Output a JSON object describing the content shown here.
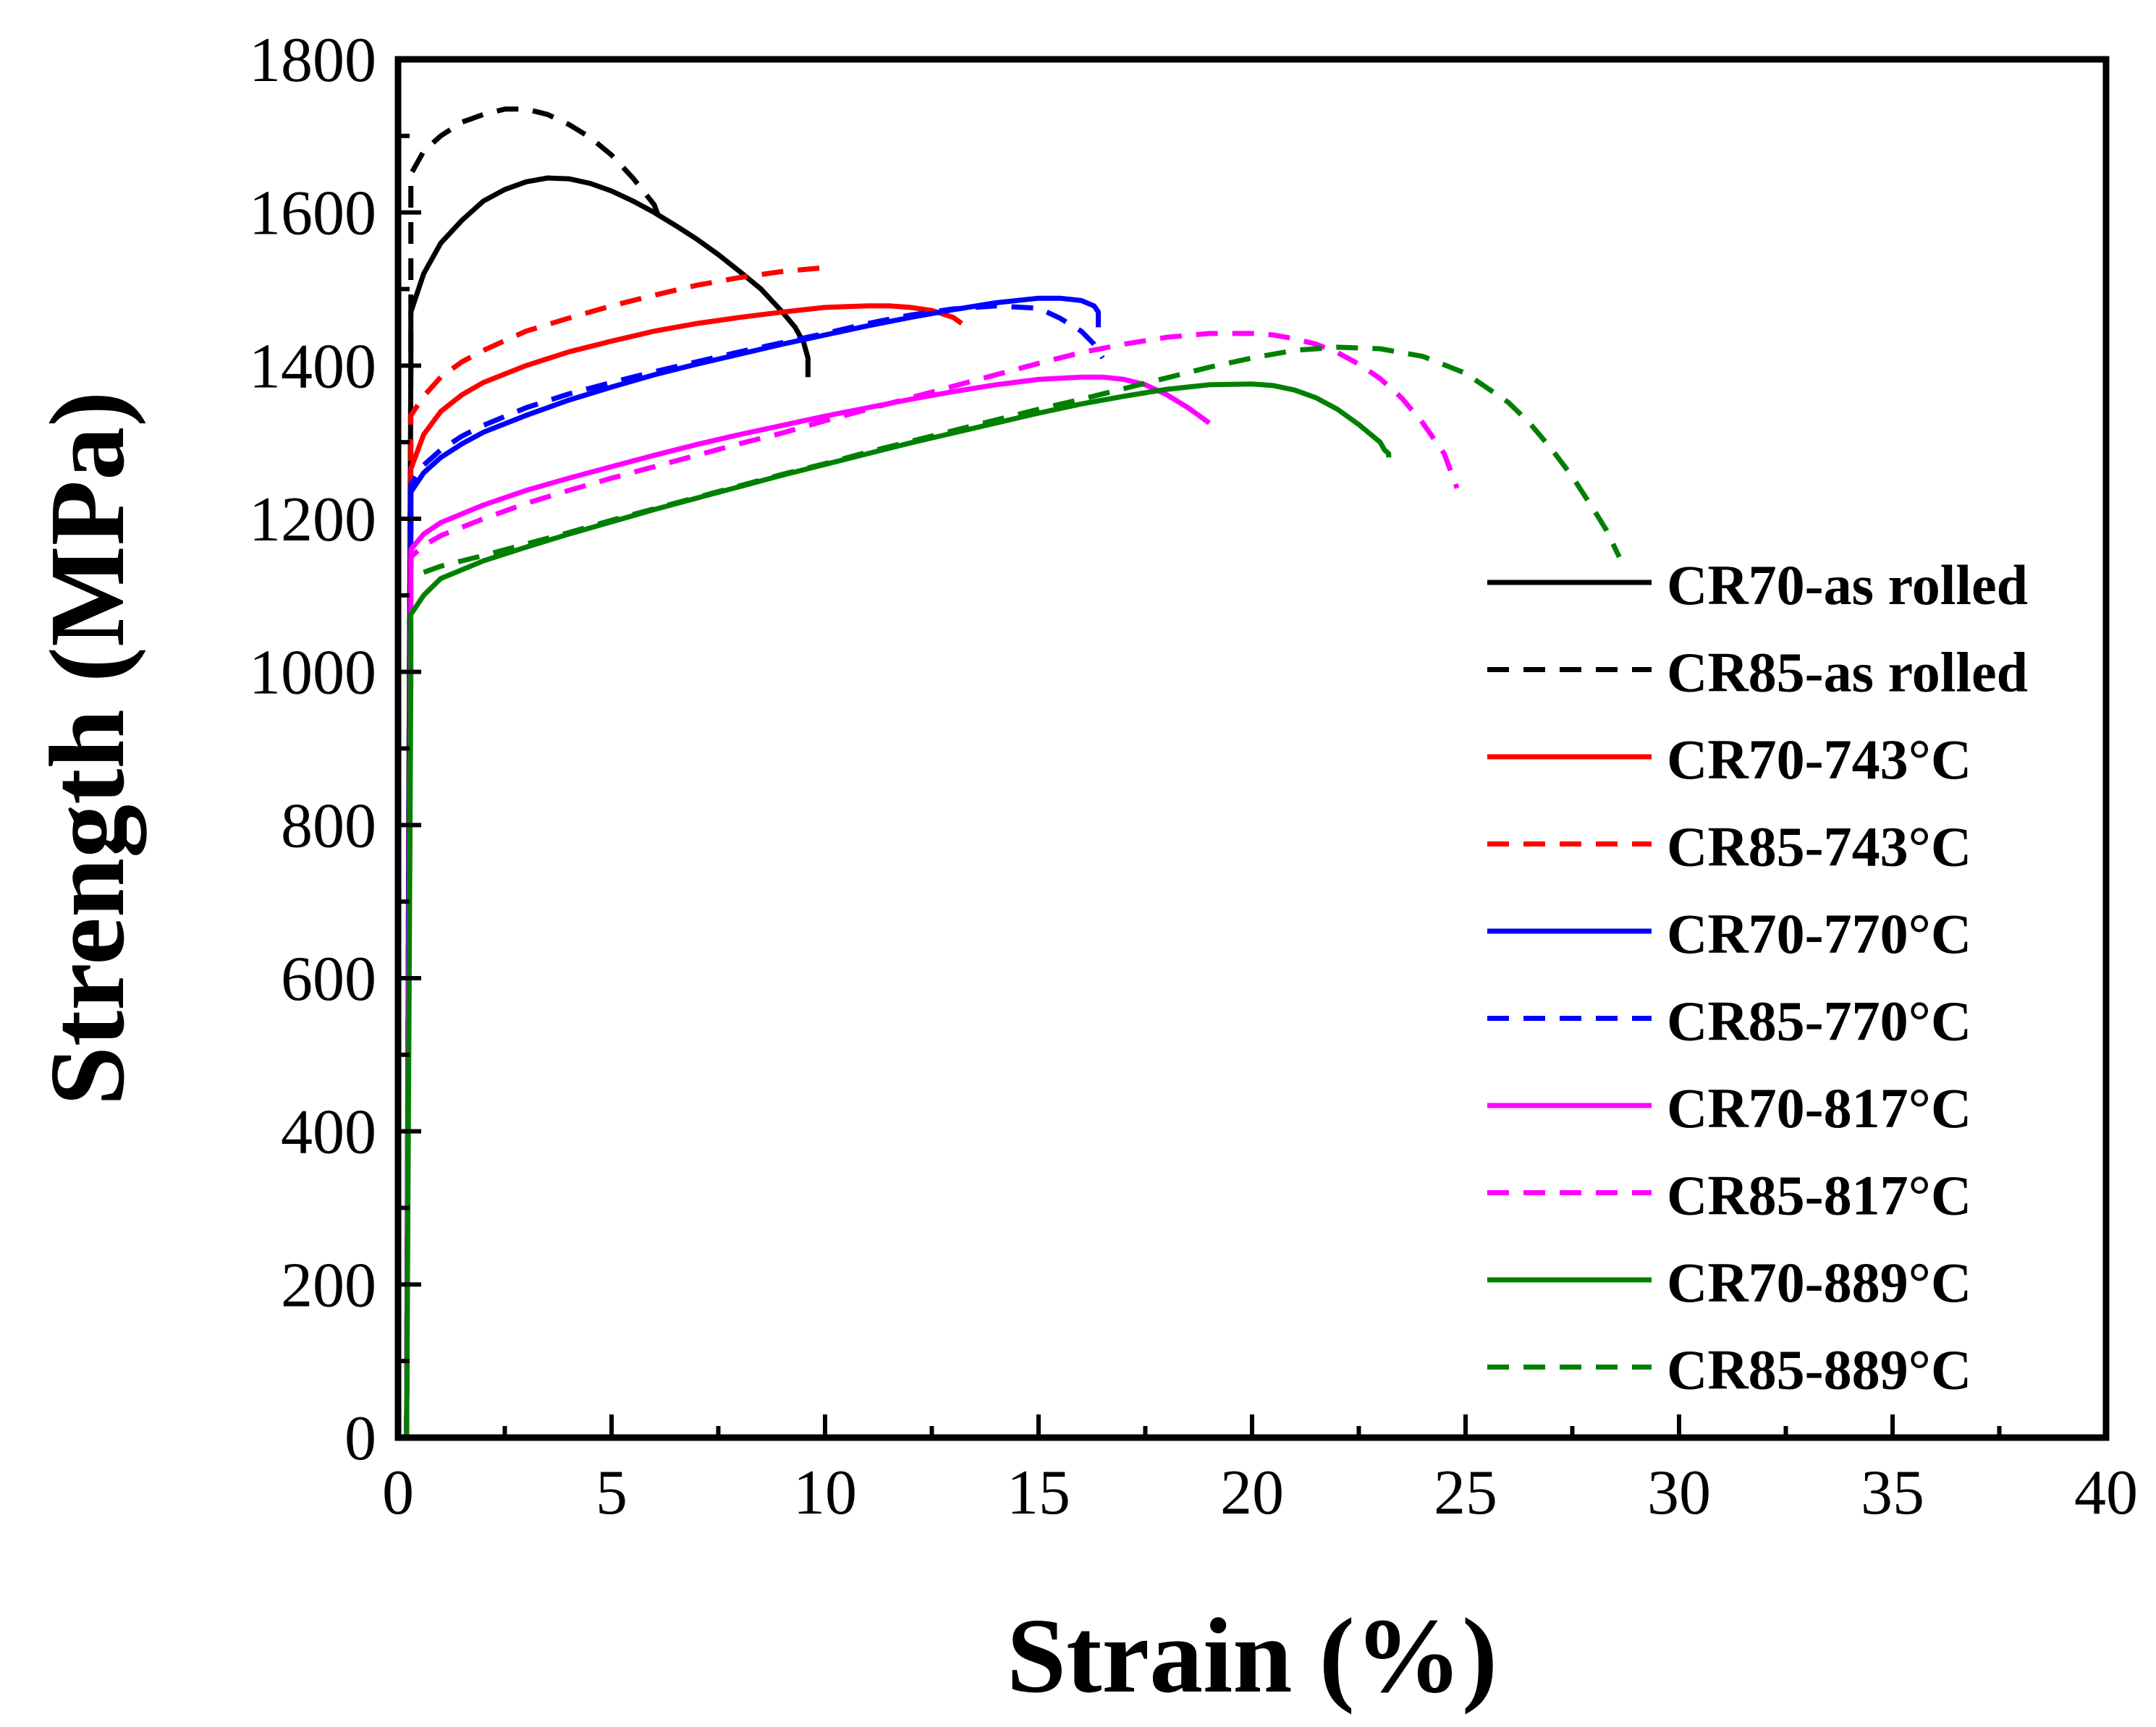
{
  "chart_data": {
    "type": "line",
    "title": "",
    "xlabel": "Strain (%)",
    "ylabel": "Strength (MPa)",
    "xlim": [
      0,
      40
    ],
    "ylim": [
      0,
      1800
    ],
    "xticks": [
      0,
      5,
      10,
      15,
      20,
      25,
      30,
      35,
      40
    ],
    "yticks": [
      0,
      200,
      400,
      600,
      800,
      1000,
      1200,
      1400,
      1600,
      1800
    ],
    "grid": false,
    "legend_position": "right",
    "series": [
      {
        "name": "CR70-as rolled",
        "color": "#000000",
        "dash": "solid",
        "x": [
          0.2,
          0.25,
          0.3,
          0.3,
          0.6,
          1,
          1.5,
          2,
          2.5,
          3,
          3.5,
          4,
          4.5,
          5,
          5.5,
          6,
          6.5,
          7,
          7.5,
          8,
          8.5,
          9,
          9.3,
          9.5,
          9.6,
          9.6
        ],
        "y": [
          0,
          800,
          1400,
          1470,
          1520,
          1560,
          1590,
          1615,
          1630,
          1640,
          1645,
          1644,
          1638,
          1628,
          1615,
          1600,
          1583,
          1565,
          1545,
          1523,
          1500,
          1470,
          1450,
          1430,
          1410,
          1385
        ]
      },
      {
        "name": "CR85-as rolled",
        "color": "#000000",
        "dash": "dashed",
        "x": [
          0.2,
          0.25,
          0.3,
          0.3,
          0.3,
          0.6,
          1,
          1.5,
          2,
          2.5,
          3,
          3.5,
          4,
          4.5,
          5,
          5.5,
          6,
          6.1,
          6.2
        ],
        "y": [
          0,
          800,
          1400,
          1500,
          1650,
          1680,
          1700,
          1718,
          1728,
          1735,
          1735,
          1728,
          1715,
          1698,
          1675,
          1645,
          1610,
          1595,
          1585
        ]
      },
      {
        "name": "CR70-743°C",
        "color": "#ff0000",
        "dash": "solid",
        "x": [
          0.2,
          0.25,
          0.3,
          0.3,
          0.6,
          1,
          1.5,
          2,
          3,
          4,
          5,
          6,
          7,
          8,
          9,
          10,
          11,
          11.5,
          12,
          12.5,
          13,
          13.2
        ],
        "y": [
          0,
          700,
          1200,
          1265,
          1310,
          1340,
          1362,
          1378,
          1400,
          1418,
          1432,
          1445,
          1455,
          1463,
          1470,
          1476,
          1478,
          1478,
          1476,
          1472,
          1463,
          1455
        ]
      },
      {
        "name": "CR85-743°C",
        "color": "#ff0000",
        "dash": "dashed",
        "x": [
          0.2,
          0.25,
          0.3,
          0.3,
          0.6,
          1,
          1.5,
          2,
          3,
          4,
          5,
          6,
          7,
          8,
          9,
          10
        ],
        "y": [
          0,
          700,
          1200,
          1335,
          1360,
          1385,
          1405,
          1420,
          1445,
          1462,
          1478,
          1492,
          1505,
          1515,
          1523,
          1528
        ]
      },
      {
        "name": "CR70-770°C",
        "color": "#0000ff",
        "dash": "solid",
        "x": [
          0.2,
          0.25,
          0.3,
          0.3,
          0.6,
          1,
          1.5,
          2,
          3,
          4,
          5,
          6,
          7,
          8,
          9,
          10,
          11,
          12,
          13,
          14,
          15,
          15.5,
          16,
          16.3,
          16.4,
          16.4
        ],
        "y": [
          0,
          700,
          1150,
          1235,
          1260,
          1280,
          1298,
          1313,
          1335,
          1355,
          1372,
          1388,
          1402,
          1415,
          1428,
          1440,
          1452,
          1463,
          1473,
          1482,
          1488,
          1488,
          1485,
          1478,
          1470,
          1450
        ]
      },
      {
        "name": "CR85-770°C",
        "color": "#0000ff",
        "dash": "dashed",
        "x": [
          0.2,
          0.25,
          0.3,
          0.3,
          0.6,
          1,
          1.5,
          2,
          3,
          4,
          5,
          6,
          7,
          8,
          9,
          10,
          11,
          12,
          13,
          14,
          15,
          15.5,
          16,
          16.3,
          16.5
        ],
        "y": [
          0,
          700,
          1150,
          1245,
          1270,
          1290,
          1308,
          1322,
          1345,
          1363,
          1378,
          1392,
          1405,
          1418,
          1430,
          1442,
          1455,
          1466,
          1474,
          1478,
          1475,
          1462,
          1445,
          1428,
          1410
        ]
      },
      {
        "name": "CR70-817°C",
        "color": "#ff00ff",
        "dash": "solid",
        "x": [
          0.2,
          0.25,
          0.3,
          0.3,
          0.6,
          1,
          2,
          3,
          4,
          5,
          6,
          7,
          8,
          9,
          10,
          11,
          12,
          13,
          14,
          15,
          16,
          16.5,
          17,
          17.5,
          18,
          18.5,
          19
        ],
        "y": [
          0,
          600,
          1100,
          1160,
          1180,
          1195,
          1218,
          1237,
          1253,
          1268,
          1283,
          1297,
          1310,
          1322,
          1334,
          1345,
          1356,
          1366,
          1375,
          1382,
          1385,
          1385,
          1382,
          1375,
          1362,
          1345,
          1325
        ]
      },
      {
        "name": "CR85-817°C",
        "color": "#ff00ff",
        "dash": "dashed",
        "x": [
          0.2,
          0.25,
          0.3,
          0.3,
          0.6,
          1,
          2,
          3,
          4,
          5,
          6,
          7,
          8,
          9,
          10,
          11,
          12,
          13,
          14,
          15,
          16,
          17,
          18,
          19,
          20,
          20.5,
          21,
          21.5,
          22,
          22.5,
          23,
          23.5,
          24,
          24.5,
          24.8
        ],
        "y": [
          0,
          600,
          1100,
          1150,
          1165,
          1178,
          1200,
          1220,
          1237,
          1253,
          1268,
          1283,
          1298,
          1312,
          1328,
          1343,
          1358,
          1373,
          1388,
          1403,
          1417,
          1428,
          1437,
          1442,
          1442,
          1440,
          1435,
          1428,
          1417,
          1402,
          1383,
          1358,
          1325,
          1285,
          1240
        ]
      },
      {
        "name": "CR70-889°C",
        "color": "#008000",
        "dash": "solid",
        "x": [
          0.2,
          0.25,
          0.3,
          0.3,
          0.6,
          1,
          2,
          3,
          4,
          5,
          6,
          7,
          8,
          9,
          10,
          11,
          12,
          13,
          14,
          15,
          16,
          17,
          18,
          19,
          20,
          20.5,
          21,
          21.5,
          22,
          22.5,
          23,
          23.1,
          23.2,
          23.2
        ],
        "y": [
          0,
          500,
          1000,
          1075,
          1100,
          1122,
          1145,
          1163,
          1180,
          1196,
          1212,
          1227,
          1242,
          1257,
          1271,
          1285,
          1299,
          1312,
          1325,
          1338,
          1350,
          1360,
          1369,
          1375,
          1376,
          1374,
          1368,
          1358,
          1343,
          1323,
          1300,
          1290,
          1285,
          1280
        ]
      },
      {
        "name": "CR85-889°C",
        "color": "#008000",
        "dash": "dashed",
        "x": [
          0.6,
          1,
          2,
          3,
          4,
          5,
          6,
          7,
          8,
          9,
          10,
          11,
          12,
          13,
          14,
          15,
          16,
          17,
          18,
          19,
          20,
          21,
          22,
          23,
          24,
          25,
          26,
          26.5,
          27,
          27.5,
          28,
          28.3,
          28.6
        ],
        "y": [
          1130,
          1138,
          1152,
          1167,
          1182,
          1198,
          1213,
          1228,
          1243,
          1258,
          1272,
          1287,
          1301,
          1315,
          1329,
          1343,
          1356,
          1370,
          1384,
          1398,
          1410,
          1420,
          1424,
          1422,
          1412,
          1390,
          1352,
          1325,
          1292,
          1255,
          1212,
          1185,
          1150
        ]
      }
    ]
  }
}
